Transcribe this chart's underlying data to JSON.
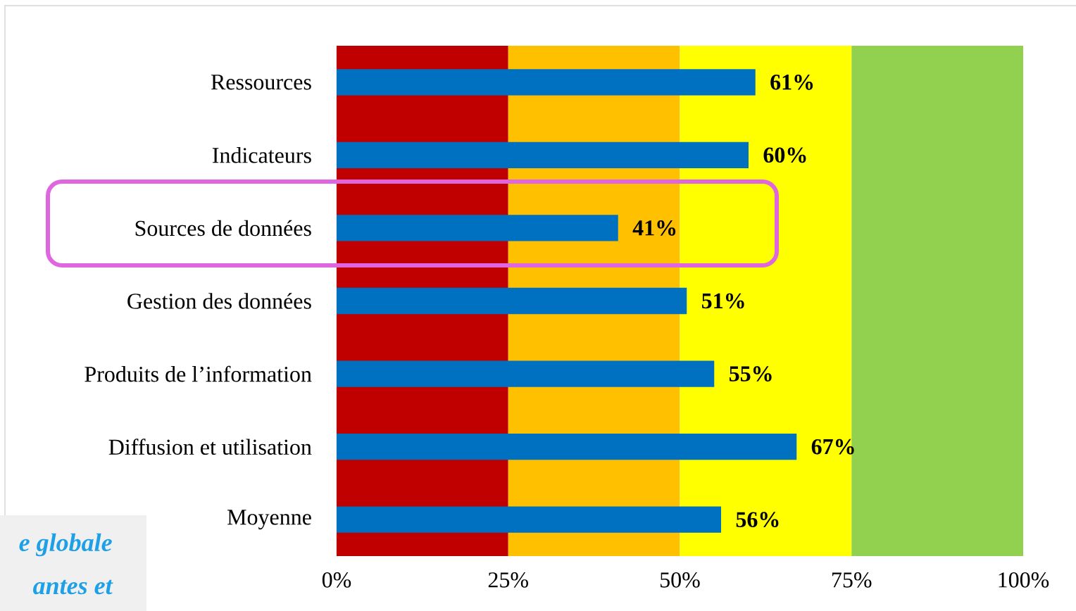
{
  "chart_data": {
    "type": "bar",
    "orientation": "horizontal",
    "categories": [
      "Ressources",
      "Indicateurs",
      "Sources de données",
      "Gestion des données",
      "Produits de l’information",
      "Diffusion et utilisation",
      "Moyenne"
    ],
    "values": [
      61,
      60,
      41,
      51,
      55,
      67,
      56
    ],
    "value_labels": [
      "61%",
      "60%",
      "41%",
      "51%",
      "55%",
      "67%",
      "56%"
    ],
    "color": "#0070c0",
    "xlim": [
      0,
      100
    ],
    "xticks": [
      {
        "value": 0,
        "label": "0%"
      },
      {
        "value": 25,
        "label": "25%"
      },
      {
        "value": 50,
        "label": "50%"
      },
      {
        "value": 75,
        "label": "75%"
      },
      {
        "value": 100,
        "label": "100%"
      }
    ],
    "bands": [
      {
        "axis": "x",
        "from": 0,
        "to": 25,
        "color": "#c00000"
      },
      {
        "axis": "x",
        "from": 25,
        "to": 50,
        "color": "#ffc000"
      },
      {
        "axis": "x",
        "from": 50,
        "to": 75,
        "color": "#ffff00"
      },
      {
        "axis": "x",
        "from": 75,
        "to": 100,
        "color": "#92d050"
      }
    ],
    "annotations": [
      "e globale",
      "antes et"
    ],
    "grid": false
  }
}
